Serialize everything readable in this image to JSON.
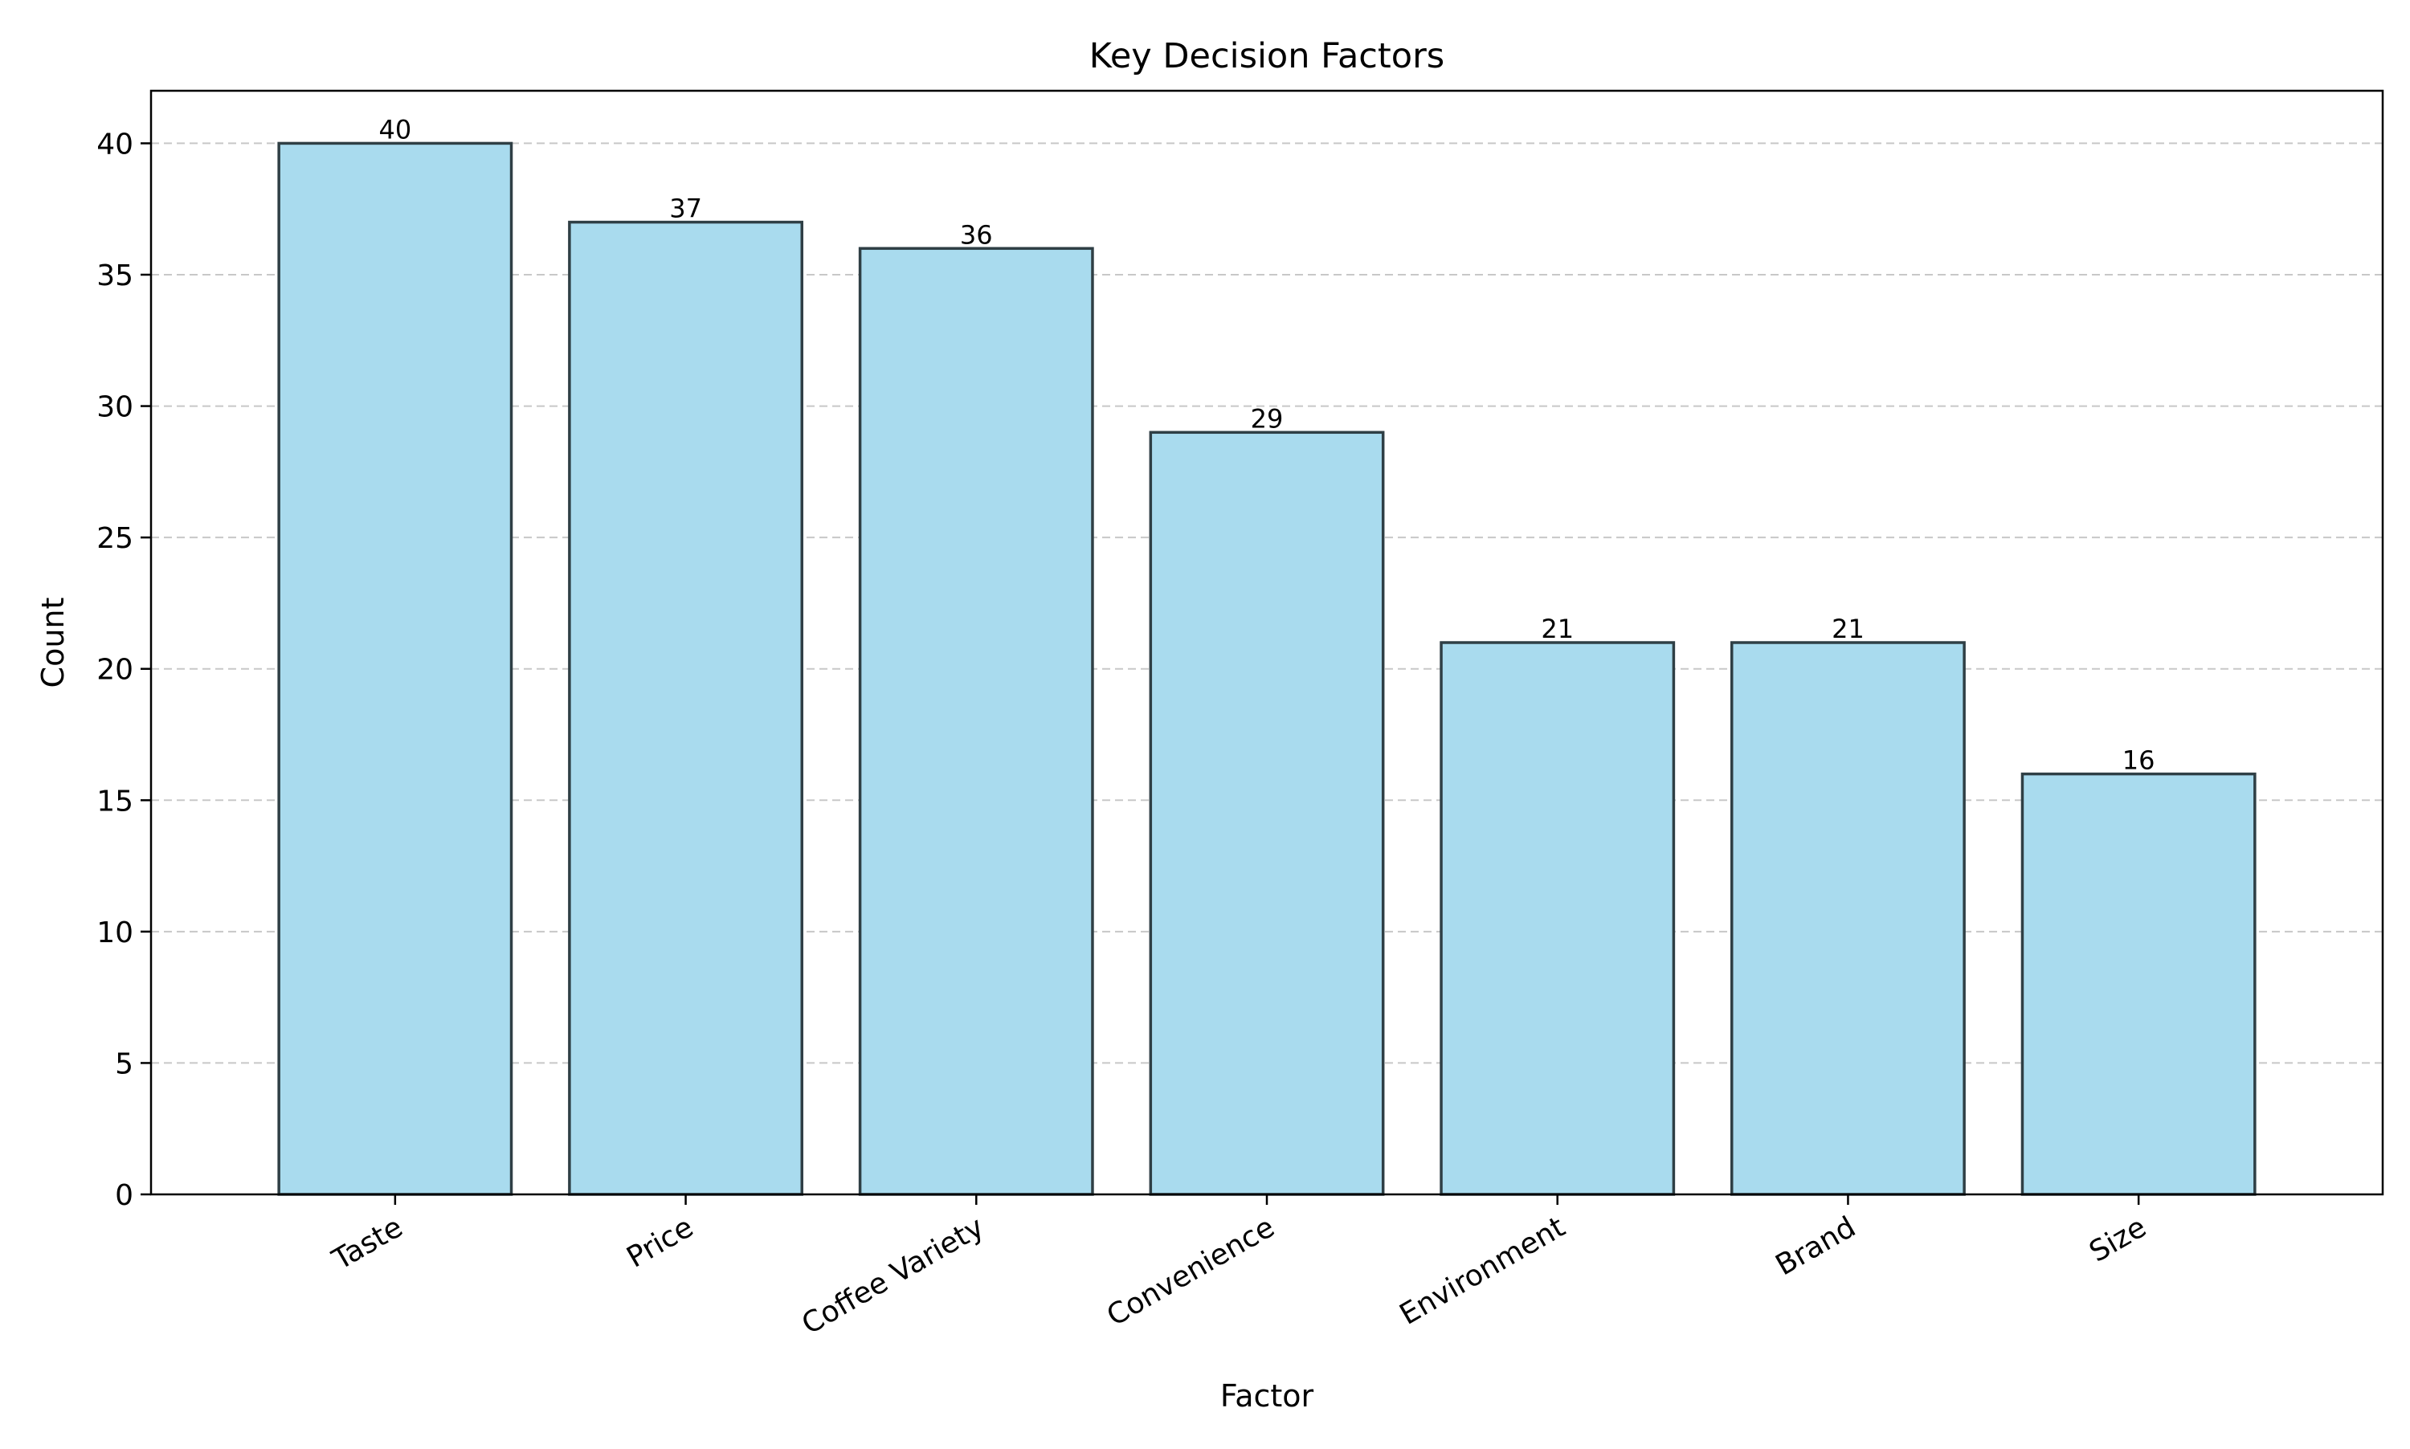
{
  "chart_data": {
    "type": "bar",
    "title": "Key Decision Factors",
    "xlabel": "Factor",
    "ylabel": "Count",
    "categories": [
      "Taste",
      "Price",
      "Coffee Variety",
      "Convenience",
      "Environment",
      "Brand",
      "Size"
    ],
    "values": [
      40,
      37,
      36,
      29,
      21,
      21,
      16
    ],
    "ylim": [
      0,
      42
    ],
    "yticks": [
      0,
      5,
      10,
      15,
      20,
      25,
      30,
      35,
      40
    ],
    "grid": "y-dashed",
    "bar_color": "#a9dbee",
    "bar_edge_color": "#2f3f45",
    "grid_color": "#c8c8c8"
  }
}
